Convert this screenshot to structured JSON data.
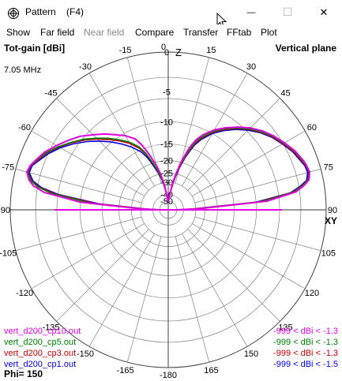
{
  "window": {
    "title": "Pattern    (F4)",
    "controls": {
      "minimize": "—",
      "maximize": "☐",
      "close": "✕"
    }
  },
  "menu": [
    {
      "label": "Show",
      "enabled": true
    },
    {
      "label": "Far field",
      "enabled": true
    },
    {
      "label": "Near field",
      "enabled": false
    },
    {
      "label": "Compare",
      "enabled": true
    },
    {
      "label": "Transfer",
      "enabled": true
    },
    {
      "label": "FFtab",
      "enabled": true
    },
    {
      "label": "Plot",
      "enabled": true
    }
  ],
  "plot": {
    "top_left_label": "Tot-gain [dBi]",
    "top_right_label": "Vertical plane",
    "frequency": "7.05 MHz",
    "z_label": "Z",
    "xy_label": "XY",
    "phi_label": "Phi= 150",
    "angle_labels": [
      "0",
      "15",
      "30",
      "45",
      "60",
      "75",
      "90",
      "105",
      "120",
      "135",
      "150",
      "165",
      "-180",
      "-165",
      "-150",
      "-135",
      "-120",
      "-105",
      "-90",
      "-75",
      "-60",
      "-45",
      "-30",
      "-15"
    ],
    "ring_labels": [
      "0",
      "-5",
      "-10",
      "-15",
      "-20",
      "-25",
      "-30",
      "-40",
      "-50"
    ],
    "grid_color": "#808080",
    "legend": [
      {
        "name": "vert_d200_cp10.out",
        "range": "-999 < dBi < -1.3",
        "color": "#e000e0"
      },
      {
        "name": "vert_d200_cp5.out",
        "range": "-999 < dBi < -1.3",
        "color": "#008000"
      },
      {
        "name": "vert_d200_cp3.out",
        "range": "-999 < dBi < -1.3",
        "color": "#c00000"
      },
      {
        "name": "vert_d200_cp1.out",
        "range": "-999 < dBi < -1.5",
        "color": "#0000e0"
      }
    ]
  },
  "chart_data": {
    "type": "line",
    "polar": true,
    "angle_unit": "degrees from zenith (0 = up, 90 = horizon)",
    "radius_unit": "dBi",
    "rlim": [
      -50,
      0
    ],
    "series": [
      {
        "name": "vert_d200_cp10.out",
        "angles": [
          -90,
          -88,
          -85,
          -82,
          -80,
          -78,
          -75,
          -72,
          -70,
          -65,
          -60,
          -55,
          -50,
          -45,
          -40,
          -35,
          -30,
          -25,
          -22,
          -20,
          -18,
          -15,
          -12,
          -10,
          -8,
          -6,
          -4,
          -2,
          0,
          2,
          4,
          6,
          8,
          10,
          12,
          15,
          18,
          20,
          22,
          25,
          30,
          35,
          40,
          45,
          50,
          55,
          60,
          65,
          70,
          72,
          75,
          78,
          80,
          82,
          85,
          88,
          90
        ],
        "gains": [
          -50,
          -30,
          -10,
          -4,
          -2.5,
          -1.8,
          -1.3,
          -1.5,
          -1.8,
          -2.5,
          -3.5,
          -4.5,
          -5.5,
          -6.8,
          -8,
          -9.3,
          -10.5,
          -12,
          -14,
          -16,
          -18,
          -21,
          -25,
          -29,
          -34,
          -40,
          -45,
          -48,
          -50,
          -48,
          -45,
          -40,
          -34,
          -29,
          -25,
          -20,
          -16,
          -14,
          -12.5,
          -11,
          -9.2,
          -7.8,
          -6.5,
          -5.3,
          -4.3,
          -3.5,
          -2.8,
          -2.1,
          -1.6,
          -1.45,
          -1.3,
          -1.6,
          -2.4,
          -3.5,
          -8,
          -28,
          -50
        ]
      },
      {
        "name": "vert_d200_cp5.out",
        "angles": [
          -90,
          -88,
          -85,
          -82,
          -80,
          -78,
          -75,
          -72,
          -70,
          -65,
          -60,
          -55,
          -50,
          -45,
          -40,
          -35,
          -30,
          -25,
          -22,
          -20,
          -18,
          -15,
          -12,
          -10,
          -8,
          -6,
          -4,
          -2,
          0,
          2,
          4,
          6,
          8,
          10,
          12,
          15,
          18,
          20,
          22,
          25,
          30,
          35,
          40,
          45,
          50,
          55,
          60,
          65,
          70,
          72,
          75,
          78,
          80,
          82,
          85,
          88,
          90
        ],
        "gains": [
          -50,
          -32,
          -12,
          -5,
          -3,
          -2,
          -1.4,
          -1.5,
          -1.9,
          -2.7,
          -3.8,
          -5,
          -6.2,
          -7.6,
          -9,
          -10.5,
          -12,
          -14,
          -16,
          -18,
          -20,
          -23,
          -27,
          -31,
          -35,
          -40,
          -45,
          -48,
          -50,
          -48,
          -45,
          -40,
          -35,
          -30,
          -26,
          -21,
          -17,
          -15,
          -13,
          -11.5,
          -9.5,
          -8,
          -6.7,
          -5.5,
          -4.5,
          -3.6,
          -2.9,
          -2.2,
          -1.7,
          -1.5,
          -1.35,
          -1.7,
          -2.6,
          -3.8,
          -9,
          -30,
          -50
        ]
      },
      {
        "name": "vert_d200_cp3.out",
        "angles": [
          -90,
          -88,
          -85,
          -82,
          -80,
          -78,
          -75,
          -72,
          -70,
          -65,
          -60,
          -55,
          -50,
          -45,
          -40,
          -35,
          -30,
          -25,
          -22,
          -20,
          -18,
          -15,
          -12,
          -10,
          -8,
          -6,
          -4,
          -2,
          0,
          2,
          4,
          6,
          8,
          10,
          12,
          15,
          18,
          20,
          22,
          25,
          30,
          35,
          40,
          45,
          50,
          55,
          60,
          65,
          70,
          72,
          75,
          78,
          80,
          82,
          85,
          88,
          90
        ],
        "gains": [
          -50,
          -33,
          -13,
          -5.5,
          -3.2,
          -2.1,
          -1.45,
          -1.55,
          -2,
          -2.8,
          -3.9,
          -5.1,
          -6.4,
          -7.8,
          -9.3,
          -10.8,
          -12.4,
          -14.5,
          -16.5,
          -18.5,
          -20.5,
          -23.5,
          -27.5,
          -31,
          -35,
          -40,
          -45,
          -48,
          -50,
          -48,
          -45,
          -40,
          -35,
          -30.5,
          -26.5,
          -21.5,
          -17.5,
          -15.5,
          -13.5,
          -11.8,
          -9.7,
          -8.2,
          -6.8,
          -5.6,
          -4.6,
          -3.7,
          -3,
          -2.3,
          -1.8,
          -1.55,
          -1.4,
          -1.75,
          -2.7,
          -4,
          -9.5,
          -31,
          -50
        ]
      },
      {
        "name": "vert_d200_cp1.out",
        "angles": [
          -90,
          -88,
          -85,
          -82,
          -80,
          -78,
          -75,
          -72,
          -70,
          -65,
          -60,
          -55,
          -50,
          -45,
          -40,
          -35,
          -30,
          -25,
          -22,
          -20,
          -18,
          -15,
          -12,
          -10,
          -8,
          -6,
          -4,
          -2,
          0,
          2,
          4,
          6,
          8,
          10,
          12,
          15,
          18,
          20,
          22,
          25,
          30,
          35,
          40,
          45,
          50,
          55,
          60,
          65,
          70,
          72,
          75,
          78,
          80,
          82,
          85,
          88,
          90
        ],
        "gains": [
          -50,
          -34,
          -14,
          -6,
          -3.5,
          -2.3,
          -1.6,
          -1.7,
          -2.1,
          -3,
          -4.1,
          -5.4,
          -6.8,
          -8.3,
          -9.9,
          -11.6,
          -13.4,
          -15.5,
          -17.5,
          -19.5,
          -21.5,
          -24.5,
          -28,
          -31.5,
          -35.5,
          -40,
          -45,
          -48,
          -50,
          -48,
          -45,
          -40,
          -35.5,
          -31,
          -27,
          -22,
          -18,
          -16,
          -14,
          -12.2,
          -10,
          -8.4,
          -7,
          -5.8,
          -4.7,
          -3.8,
          -3.1,
          -2.4,
          -1.9,
          -1.65,
          -1.55,
          -1.9,
          -2.9,
          -4.2,
          -10,
          -32,
          -50
        ]
      }
    ]
  }
}
